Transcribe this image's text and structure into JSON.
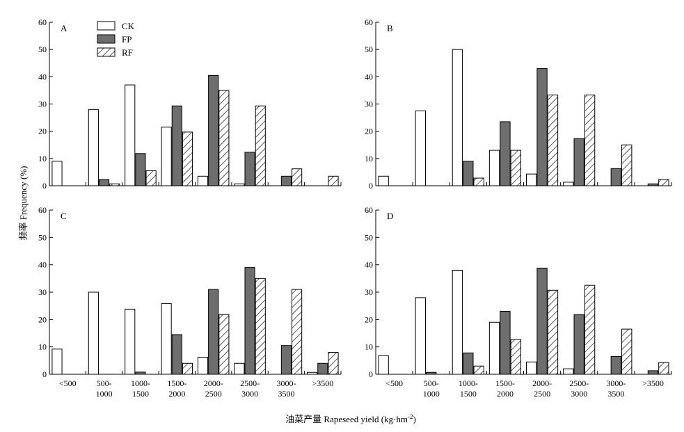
{
  "figure": {
    "ylabel": "频率 Frequency (%)",
    "xlabel": "油菜产量 Rapeseed yield (kg·hm",
    "xlabel_sup": "-2",
    "xlabel_close": ")"
  },
  "legend": {
    "items": [
      {
        "label": "CK",
        "style": "white"
      },
      {
        "label": "FP",
        "style": "gray"
      },
      {
        "label": "RF",
        "style": "hatch"
      }
    ]
  },
  "colors": {
    "ck_fill": "#ffffff",
    "fp_fill": "#6e6e6e",
    "rf_hatch": "#000000",
    "stroke": "#000000"
  },
  "chart_data": [
    {
      "panel": "A",
      "type": "bar",
      "categories": [
        [
          "<500"
        ],
        [
          "500-",
          "1000"
        ],
        [
          "1000-",
          "1500"
        ],
        [
          "1500-",
          "2000"
        ],
        [
          "2000-",
          "2500"
        ],
        [
          "2500-",
          "3000"
        ],
        [
          "3000-",
          "3500"
        ],
        [
          ">3500"
        ]
      ],
      "show_category_labels": false,
      "ylim": [
        0,
        60
      ],
      "yticks": [
        0,
        10,
        20,
        30,
        40,
        50,
        60
      ],
      "series": [
        {
          "name": "CK",
          "values": [
            9,
            28,
            37,
            21.5,
            3.5,
            0.7,
            0,
            0
          ]
        },
        {
          "name": "FP",
          "values": [
            0,
            2.3,
            11.8,
            29.3,
            40.5,
            12.3,
            3.5,
            0
          ]
        },
        {
          "name": "RF",
          "values": [
            0,
            0.7,
            5.5,
            19.7,
            35,
            29.3,
            6.2,
            3.5
          ]
        }
      ]
    },
    {
      "panel": "B",
      "type": "bar",
      "categories": [
        [
          "<500"
        ],
        [
          "500-",
          "1000"
        ],
        [
          "1000-",
          "1500"
        ],
        [
          "1500-",
          "2000"
        ],
        [
          "2000-",
          "2500"
        ],
        [
          "2500-",
          "3000"
        ],
        [
          "3000-",
          "3500"
        ],
        [
          ">3500"
        ]
      ],
      "show_category_labels": false,
      "ylim": [
        0,
        60
      ],
      "yticks": [
        0,
        10,
        20,
        30,
        40,
        50,
        60
      ],
      "series": [
        {
          "name": "CK",
          "values": [
            3.5,
            27.5,
            50,
            13,
            4.3,
            1.3,
            0,
            0
          ]
        },
        {
          "name": "FP",
          "values": [
            0,
            0,
            9,
            23.5,
            43,
            17.3,
            6.3,
            0.7
          ]
        },
        {
          "name": "RF",
          "values": [
            0,
            0,
            2.8,
            13,
            33.3,
            33.3,
            15,
            2.3
          ]
        }
      ]
    },
    {
      "panel": "C",
      "type": "bar",
      "categories": [
        [
          "<500"
        ],
        [
          "500-",
          "1000"
        ],
        [
          "1000-",
          "1500"
        ],
        [
          "1500-",
          "2000"
        ],
        [
          "2000-",
          "2500"
        ],
        [
          "2500-",
          "3000"
        ],
        [
          "3000-",
          "3500"
        ],
        [
          ">3500"
        ]
      ],
      "show_category_labels": true,
      "ylim": [
        0,
        60
      ],
      "yticks": [
        0,
        10,
        20,
        30,
        40,
        50,
        60
      ],
      "series": [
        {
          "name": "CK",
          "values": [
            9.2,
            30,
            23.8,
            25.8,
            6.2,
            4,
            0,
            0.7
          ]
        },
        {
          "name": "FP",
          "values": [
            0,
            0,
            0.8,
            14.5,
            31,
            39,
            10.5,
            4
          ]
        },
        {
          "name": "RF",
          "values": [
            0,
            0,
            0,
            4,
            21.8,
            35,
            31,
            8
          ]
        }
      ]
    },
    {
      "panel": "D",
      "type": "bar",
      "categories": [
        [
          "<500"
        ],
        [
          "500-",
          "1000"
        ],
        [
          "1000-",
          "1500"
        ],
        [
          "1500-",
          "2000"
        ],
        [
          "2000-",
          "2500"
        ],
        [
          "2500-",
          "3000"
        ],
        [
          "3000-",
          "3500"
        ],
        [
          ">3500"
        ]
      ],
      "show_category_labels": true,
      "ylim": [
        0,
        60
      ],
      "yticks": [
        0,
        10,
        20,
        30,
        40,
        50,
        60
      ],
      "series": [
        {
          "name": "CK",
          "values": [
            6.8,
            28,
            38,
            19,
            4.5,
            2,
            0,
            0
          ]
        },
        {
          "name": "FP",
          "values": [
            0,
            0.7,
            7.8,
            23,
            38.8,
            21.8,
            6.5,
            1.3
          ]
        },
        {
          "name": "RF",
          "values": [
            0,
            0,
            3,
            12.7,
            30.7,
            32.5,
            16.5,
            4.3
          ]
        }
      ]
    }
  ]
}
